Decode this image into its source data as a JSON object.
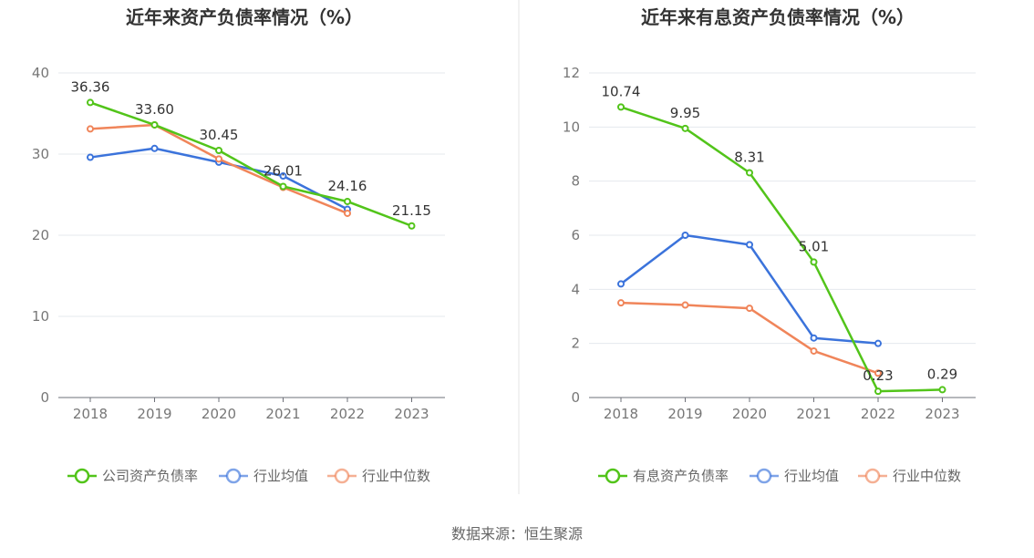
{
  "source_text": "数据来源：恒生聚源",
  "chart_data": [
    {
      "type": "line",
      "title": "近年来资产负债率情况（%）",
      "categories": [
        "2018",
        "2019",
        "2020",
        "2021",
        "2022",
        "2023"
      ],
      "ylim": [
        0,
        40
      ],
      "yticks": [
        0,
        10,
        20,
        30,
        40
      ],
      "grid": true,
      "legend_position": "bottom",
      "series": [
        {
          "name": "公司资产负债率",
          "color": "#52c41a",
          "values": [
            36.36,
            33.6,
            30.45,
            26.01,
            24.16,
            21.15
          ],
          "labels": [
            "36.36",
            "33.60",
            "30.45",
            "26.01",
            "24.16",
            "21.15"
          ]
        },
        {
          "name": "行业均值",
          "color": "#3b73db",
          "values": [
            29.6,
            30.7,
            29.0,
            27.3,
            23.2,
            null
          ]
        },
        {
          "name": "行业中位数",
          "color": "#f0855a",
          "values": [
            33.1,
            33.6,
            29.4,
            25.9,
            22.7,
            null
          ]
        }
      ]
    },
    {
      "type": "line",
      "title": "近年来有息资产负债率情况（%）",
      "categories": [
        "2018",
        "2019",
        "2020",
        "2021",
        "2022",
        "2023"
      ],
      "ylim": [
        0,
        12
      ],
      "yticks": [
        0,
        2,
        4,
        6,
        8,
        10,
        12
      ],
      "grid": true,
      "legend_position": "bottom",
      "series": [
        {
          "name": "有息资产负债率",
          "color": "#52c41a",
          "values": [
            10.74,
            9.95,
            8.31,
            5.01,
            0.23,
            0.29
          ],
          "labels": [
            "10.74",
            "9.95",
            "8.31",
            "5.01",
            "0.23",
            "0.29"
          ]
        },
        {
          "name": "行业均值",
          "color": "#3b73db",
          "values": [
            4.2,
            6.0,
            5.65,
            2.2,
            2.0,
            null
          ]
        },
        {
          "name": "行业中位数",
          "color": "#f0855a",
          "values": [
            3.5,
            3.42,
            3.3,
            1.72,
            0.9,
            null
          ]
        }
      ]
    }
  ]
}
